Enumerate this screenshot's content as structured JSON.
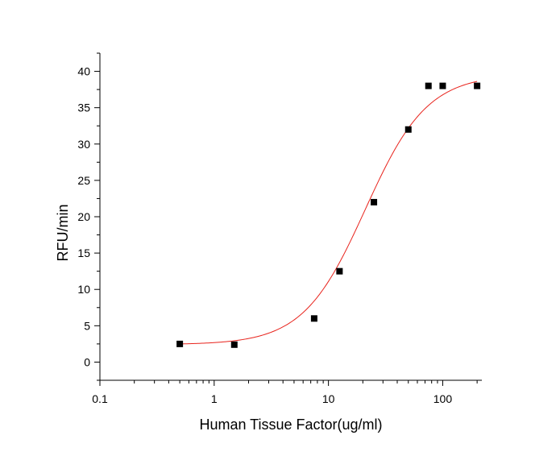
{
  "chart_data": {
    "type": "scatter",
    "title": "",
    "xlabel": "Human Tissue Factor(ug/ml)",
    "ylabel": "RFU/min",
    "xscale": "log",
    "xlim": [
      0.1,
      220
    ],
    "ylim": [
      -2.5,
      42.5
    ],
    "x_ticks": [
      0.1,
      1,
      10,
      100
    ],
    "x_tick_labels": [
      "0.1",
      "1",
      "10",
      "100"
    ],
    "y_ticks": [
      0,
      5,
      10,
      15,
      20,
      25,
      30,
      35,
      40
    ],
    "y_tick_labels": [
      "0",
      "5",
      "10",
      "15",
      "20",
      "25",
      "30",
      "35",
      "40"
    ],
    "grid": false,
    "legend": "none",
    "series": [
      {
        "marker": "square",
        "color": "#000000",
        "points": [
          {
            "x": 0.5,
            "y": 2.5
          },
          {
            "x": 1.5,
            "y": 2.4
          },
          {
            "x": 7.5,
            "y": 6.0
          },
          {
            "x": 12.5,
            "y": 12.5
          },
          {
            "x": 25,
            "y": 22.0
          },
          {
            "x": 50,
            "y": 32.0
          },
          {
            "x": 75,
            "y": 38.0
          },
          {
            "x": 100,
            "y": 38.0
          },
          {
            "x": 200,
            "y": 38.0
          }
        ]
      }
    ],
    "fit_curve": {
      "type": "four-parameter logistic",
      "color": "#e8231c",
      "bottom": 2.4,
      "top": 39.6,
      "ec50": 21,
      "hill": 1.6
    }
  }
}
